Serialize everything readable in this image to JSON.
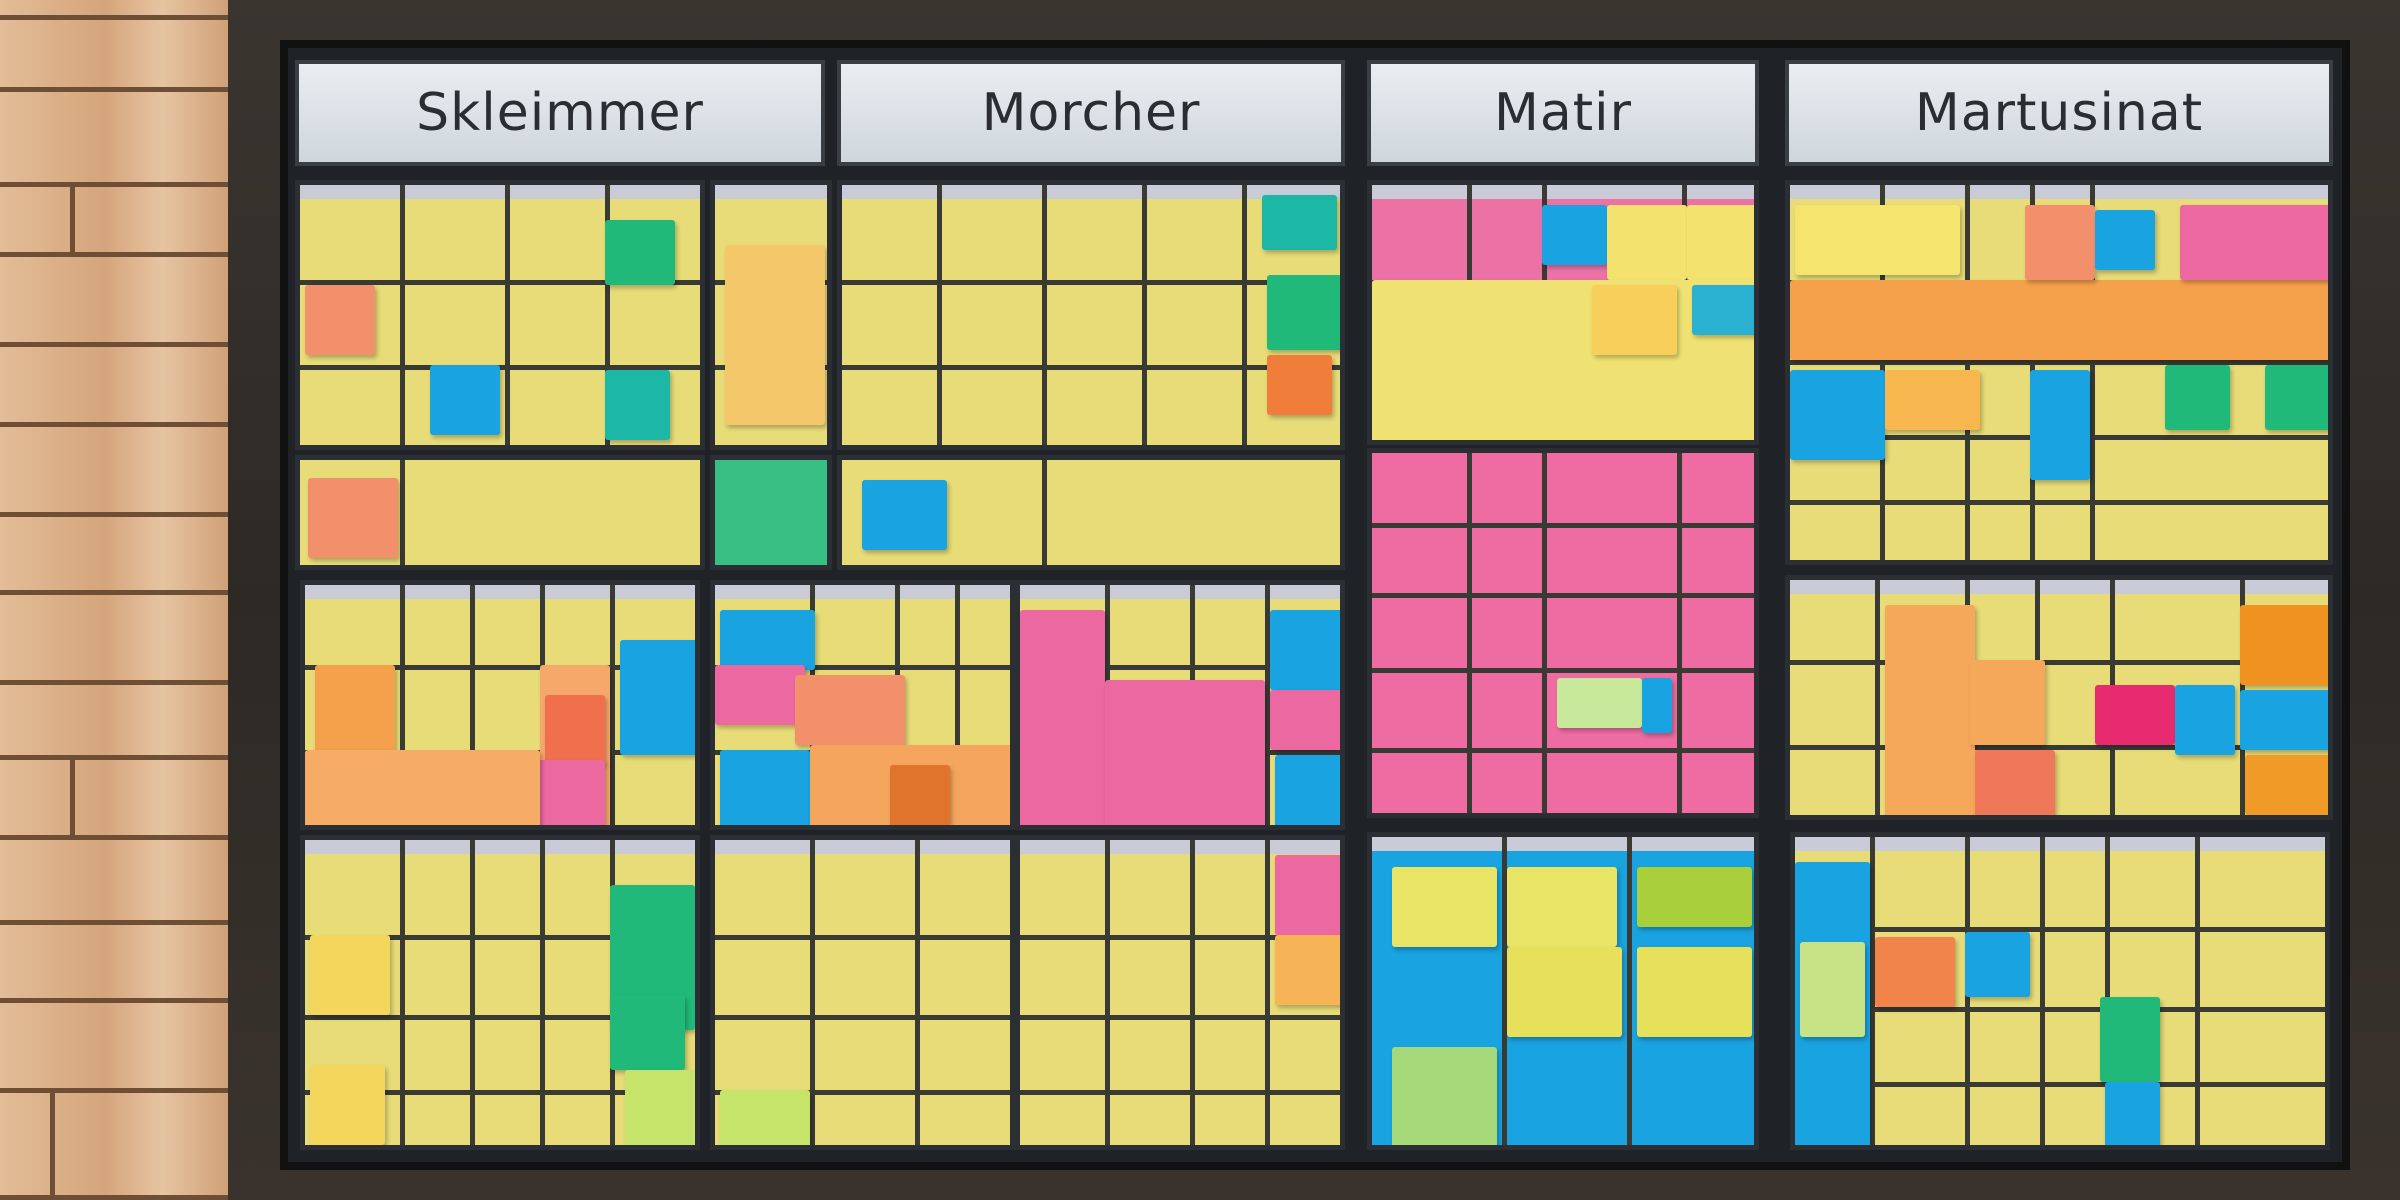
{
  "board": {
    "columns": [
      {
        "header": "Skleimmer"
      },
      {
        "header": "Morcher"
      },
      {
        "header": "Matir"
      },
      {
        "header": "Martusinat"
      }
    ]
  },
  "colors": {
    "yellow": "#f3e36e",
    "orange": "#f5a04a",
    "pink": "#ec68a0",
    "blue": "#19a3e0",
    "green": "#21b97a",
    "wood": "#d9b28c",
    "frame": "#2e2925"
  }
}
